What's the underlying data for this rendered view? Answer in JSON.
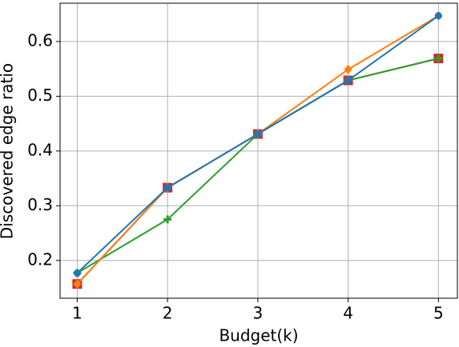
{
  "chart_data": {
    "type": "line",
    "x_label": "Budget(k)",
    "y_label": "Discovered edge ratio",
    "x": [
      1,
      2,
      3,
      4,
      5
    ],
    "series": [
      {
        "color": "#d62728",
        "marker": "square",
        "values": [
          0.157,
          0.333,
          0.431,
          0.529,
          0.569
        ]
      },
      {
        "color": "#2ca02c",
        "marker": "plus",
        "values": [
          0.177,
          0.275,
          0.431,
          0.529,
          0.569
        ]
      },
      {
        "color": "#ff7f0e",
        "marker": "diamond",
        "values": [
          0.157,
          0.333,
          0.431,
          0.549,
          0.647
        ]
      },
      {
        "color": "#1f77b4",
        "marker": "circle",
        "values": [
          0.177,
          0.333,
          0.431,
          0.529,
          0.647
        ]
      }
    ],
    "xlim": [
      0.81,
      5.21
    ],
    "xticks": [
      1,
      2,
      3,
      4,
      5
    ],
    "ylim": [
      0.131,
      0.67
    ],
    "yticks": [
      0.2,
      0.3,
      0.4,
      0.5,
      0.6
    ],
    "grid": true
  }
}
